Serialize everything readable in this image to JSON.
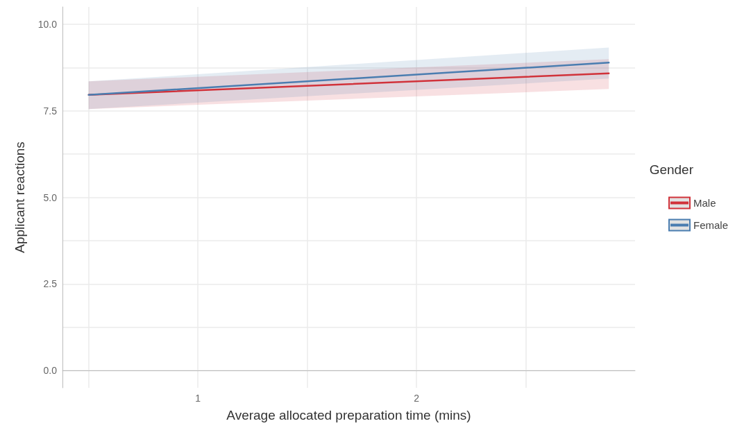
{
  "chart_data": {
    "type": "line",
    "xlabel": "Average allocated preparation time (mins)",
    "ylabel": "Applicant reactions",
    "legend_title": "Gender",
    "xlim": [
      0.38,
      3.0
    ],
    "xticks": [
      {
        "value": 0.5,
        "label": null
      },
      1,
      {
        "value": 1.5,
        "label": null
      },
      2,
      {
        "value": 2.5,
        "label": null
      }
    ],
    "ylim": [
      -0.5,
      10.5
    ],
    "yticks": [
      {
        "value": 0,
        "label": "0.0"
      },
      {
        "value": 1.25,
        "label": null
      },
      {
        "value": 2.5,
        "label": "2.5"
      },
      {
        "value": 3.75,
        "label": null
      },
      {
        "value": 5,
        "label": "5.0"
      },
      {
        "value": 6.25,
        "label": null
      },
      {
        "value": 7.5,
        "label": "7.5"
      },
      {
        "value": 8.75,
        "label": null
      },
      {
        "value": 10,
        "label": "10.0"
      }
    ],
    "x": [
      0.5,
      2.88
    ],
    "grid": true,
    "legend": "right",
    "marker": "none",
    "line_style": "solid",
    "series": [
      {
        "name": "Male",
        "color": "#d1323a",
        "values": [
          7.96,
          8.58
        ],
        "lower": [
          7.55,
          8.13
        ],
        "upper": [
          8.35,
          8.99
        ]
      },
      {
        "name": "Female",
        "color": "#4a7db0",
        "values": [
          7.96,
          8.89
        ],
        "lower": [
          7.55,
          8.43
        ],
        "upper": [
          8.35,
          9.33
        ]
      }
    ]
  }
}
